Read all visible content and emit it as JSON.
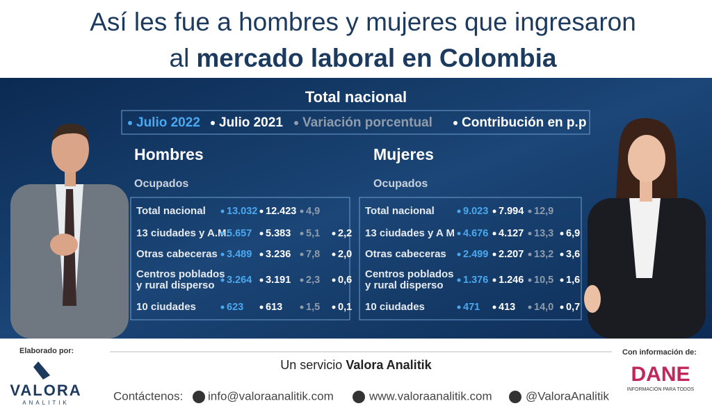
{
  "header": {
    "title_line1": "Así les fue a hombres y mujeres que ingresaron",
    "title_line2_prefix": "al",
    "title_line2_bold": "mercado laboral en Colombia"
  },
  "panel": {
    "title": "Total nacional",
    "legend": [
      "Julio 2022",
      "Julio 2021",
      "Variación porcentual",
      "Contribución en p.p"
    ],
    "groups": [
      {
        "title": "Hombres",
        "subtitle": "Ocupados",
        "rows": [
          {
            "label": [
              "Total nacional"
            ],
            "values": [
              "13.032",
              "12.423",
              "4,9"
            ]
          },
          {
            "label": [
              "13 ciudades y A.M."
            ],
            "values": [
              "5.657",
              "5.383",
              "5,1",
              "2,2"
            ]
          },
          {
            "label": [
              "Otras cabeceras"
            ],
            "values": [
              "3.489",
              "3.236",
              "7,8",
              "2,0"
            ]
          },
          {
            "label": [
              "Centros poblados",
              "y rural disperso"
            ],
            "values": [
              "3.264",
              "3.191",
              "2,3",
              "0,6"
            ]
          },
          {
            "label": [
              "10 ciudades"
            ],
            "values": [
              "623",
              "613",
              "1,5",
              "0,1"
            ]
          }
        ]
      },
      {
        "title": "Mujeres",
        "subtitle": "Ocupados",
        "rows": [
          {
            "label": [
              "Total nacional"
            ],
            "values": [
              "9.023",
              "7.994",
              "12,9"
            ]
          },
          {
            "label": [
              "13 ciudades y A M"
            ],
            "values": [
              "4.676",
              "4.127",
              "13,3",
              "6,9"
            ]
          },
          {
            "label": [
              "Otras cabeceras"
            ],
            "values": [
              "2.499",
              "2.207",
              "13,2",
              "3,6"
            ]
          },
          {
            "label": [
              "Centros poblados",
              "y rural disperso"
            ],
            "values": [
              "1.376",
              "1.246",
              "10,5",
              "1,6"
            ]
          },
          {
            "label": [
              "10 ciudades"
            ],
            "values": [
              "471",
              "413",
              "14,0",
              "0,7"
            ]
          }
        ]
      }
    ]
  },
  "footer": {
    "made_by": "Elaborado por:",
    "service_prefix": "Un servicio",
    "service_bold": "Valora Analitik",
    "source": "Con información de:",
    "valora": "VALORA",
    "valora_sub": "ANALITIK",
    "dane": "DANE",
    "dane_sub": "INFORMACIÓN PARA TODOS",
    "contact_label": "Contáctenos:",
    "email": "info@valoraanalitik.com",
    "web": "www.valoraanalitik.com",
    "twitter": "@ValoraAnalitik"
  }
}
